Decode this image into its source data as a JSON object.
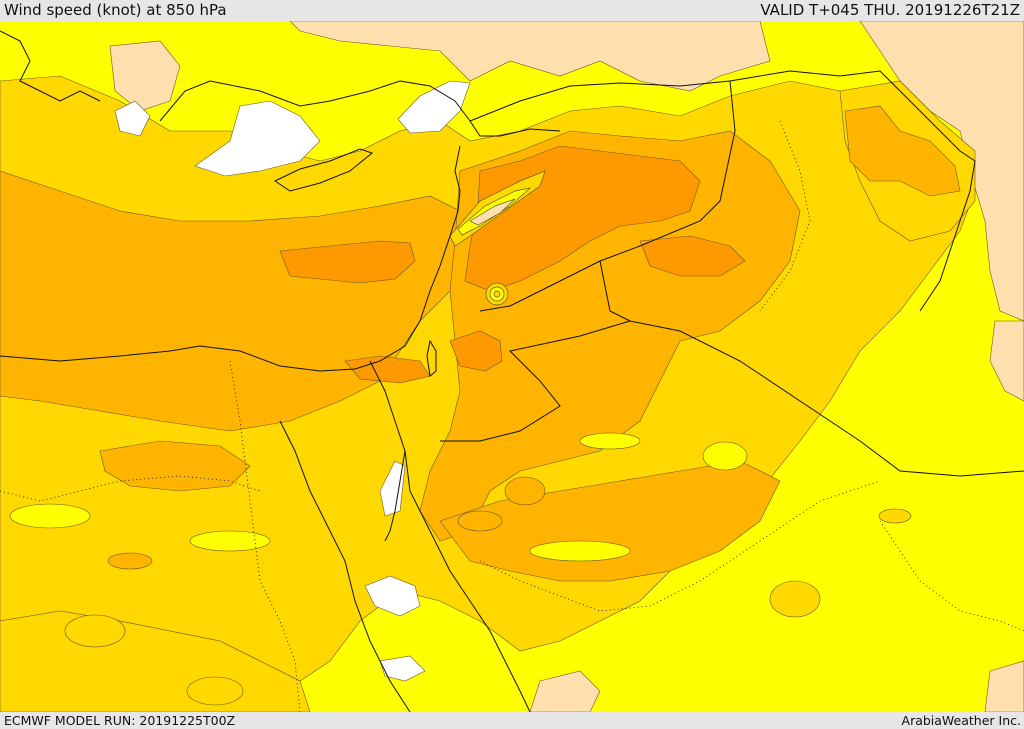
{
  "header": {
    "title": "Wind speed (knot) at 850 hPa",
    "valid_time": "VALID T+045 THU. 20191226T21Z"
  },
  "footer": {
    "model_run": "ECMWF MODEL RUN: 20191225T00Z",
    "credit": "ArabiaWeather Inc."
  },
  "map": {
    "colors": {
      "calm": "#ffffff",
      "light": "#fedfae",
      "yellow": "#ffff00",
      "gold": "#ffd800",
      "amber": "#ffb400",
      "orange": "#ff9900",
      "contour": "#6b5a2a",
      "border": "#111111"
    }
  }
}
